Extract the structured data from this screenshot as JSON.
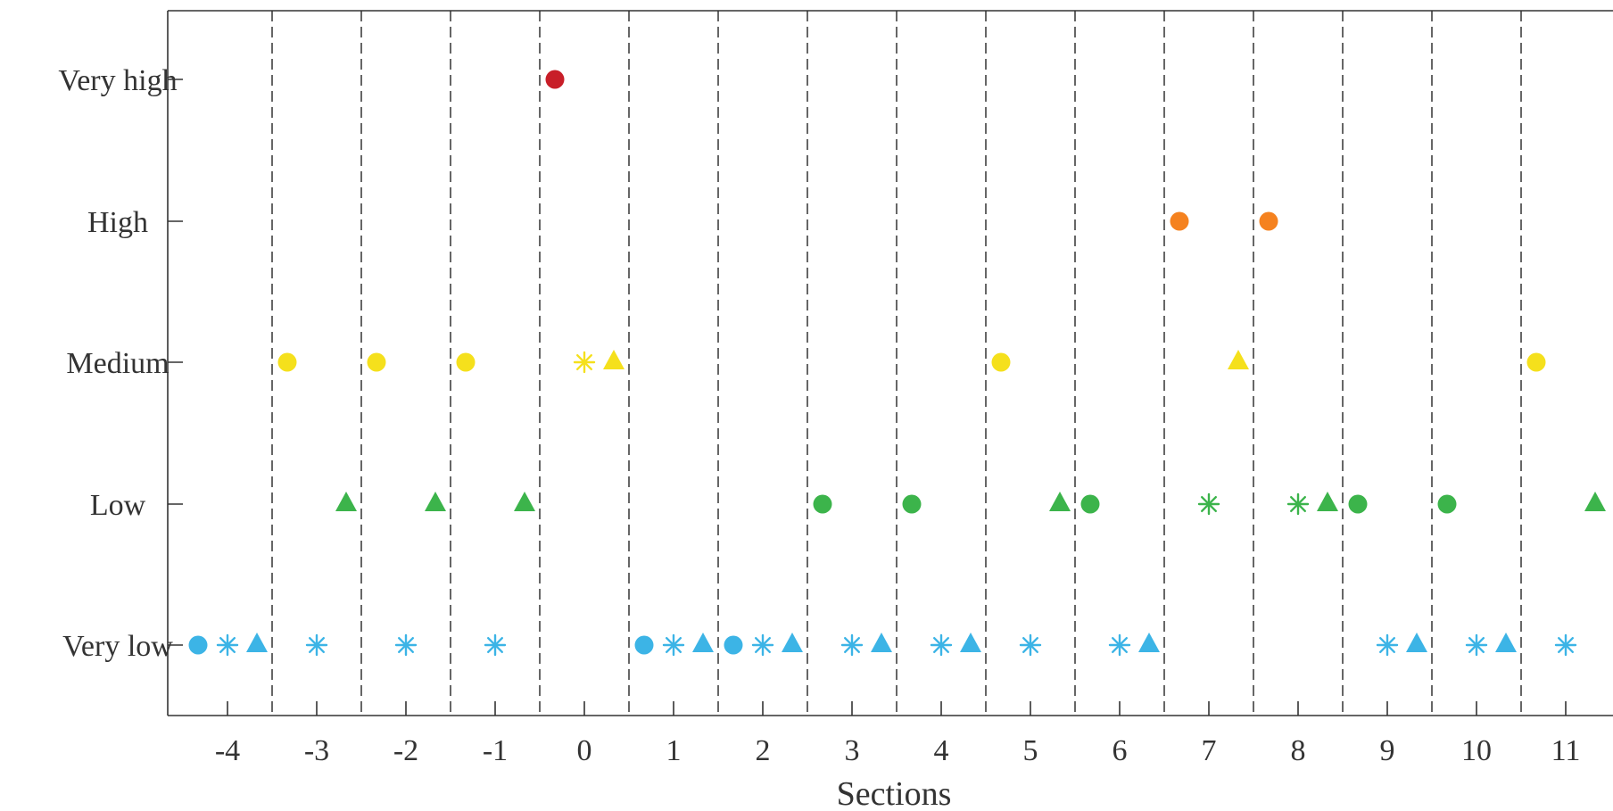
{
  "chart_data": {
    "type": "scatter",
    "xlabel": "Sections",
    "ylabel": "",
    "xlim": [
      -4.65,
      11.5
    ],
    "x_ticks": [
      -4,
      -3,
      -2,
      -1,
      0,
      1,
      2,
      3,
      4,
      5,
      6,
      7,
      8,
      9,
      10,
      11
    ],
    "x_tick_labels": [
      "-4",
      "-3",
      "-2",
      "-1",
      "0",
      "1",
      "2",
      "3",
      "4",
      "5",
      "6",
      "7",
      "8",
      "9",
      "10",
      "11"
    ],
    "y_categories": [
      "Very low",
      "Low",
      "Medium",
      "High",
      "Very high"
    ],
    "section_boundaries": [
      -3.5,
      -2.5,
      -1.5,
      -0.5,
      0.5,
      1.5,
      2.5,
      3.5,
      4.5,
      5.5,
      6.5,
      7.5,
      8.5,
      9.5,
      10.5
    ],
    "grid": "vertical dashed lines at section boundaries",
    "level_colors": {
      "Very low": "#3cb4e6",
      "Low": "#3cb44b",
      "Medium": "#f5e01c",
      "High": "#f5821f",
      "Very high": "#c81e28"
    },
    "marker_types": [
      "circle",
      "asterisk",
      "triangle"
    ],
    "points": [
      {
        "x": -4.33,
        "level": "Very low",
        "marker": "circle"
      },
      {
        "x": -4.0,
        "level": "Very low",
        "marker": "asterisk"
      },
      {
        "x": -3.67,
        "level": "Very low",
        "marker": "triangle"
      },
      {
        "x": -3.0,
        "level": "Very low",
        "marker": "asterisk"
      },
      {
        "x": -2.0,
        "level": "Very low",
        "marker": "asterisk"
      },
      {
        "x": -1.0,
        "level": "Very low",
        "marker": "asterisk"
      },
      {
        "x": 0.67,
        "level": "Very low",
        "marker": "circle"
      },
      {
        "x": 1.0,
        "level": "Very low",
        "marker": "asterisk"
      },
      {
        "x": 1.33,
        "level": "Very low",
        "marker": "triangle"
      },
      {
        "x": 1.67,
        "level": "Very low",
        "marker": "circle"
      },
      {
        "x": 2.0,
        "level": "Very low",
        "marker": "asterisk"
      },
      {
        "x": 2.33,
        "level": "Very low",
        "marker": "triangle"
      },
      {
        "x": 3.0,
        "level": "Very low",
        "marker": "asterisk"
      },
      {
        "x": 3.33,
        "level": "Very low",
        "marker": "triangle"
      },
      {
        "x": 4.0,
        "level": "Very low",
        "marker": "asterisk"
      },
      {
        "x": 4.33,
        "level": "Very low",
        "marker": "triangle"
      },
      {
        "x": 5.0,
        "level": "Very low",
        "marker": "asterisk"
      },
      {
        "x": 6.0,
        "level": "Very low",
        "marker": "asterisk"
      },
      {
        "x": 6.33,
        "level": "Very low",
        "marker": "triangle"
      },
      {
        "x": 9.0,
        "level": "Very low",
        "marker": "asterisk"
      },
      {
        "x": 9.33,
        "level": "Very low",
        "marker": "triangle"
      },
      {
        "x": 10.0,
        "level": "Very low",
        "marker": "asterisk"
      },
      {
        "x": 10.33,
        "level": "Very low",
        "marker": "triangle"
      },
      {
        "x": 11.0,
        "level": "Very low",
        "marker": "asterisk"
      },
      {
        "x": -2.67,
        "level": "Low",
        "marker": "triangle"
      },
      {
        "x": -1.67,
        "level": "Low",
        "marker": "triangle"
      },
      {
        "x": -0.67,
        "level": "Low",
        "marker": "triangle"
      },
      {
        "x": 2.67,
        "level": "Low",
        "marker": "circle"
      },
      {
        "x": 3.67,
        "level": "Low",
        "marker": "circle"
      },
      {
        "x": 5.33,
        "level": "Low",
        "marker": "triangle"
      },
      {
        "x": 5.67,
        "level": "Low",
        "marker": "circle"
      },
      {
        "x": 7.0,
        "level": "Low",
        "marker": "asterisk"
      },
      {
        "x": 8.0,
        "level": "Low",
        "marker": "asterisk"
      },
      {
        "x": 8.33,
        "level": "Low",
        "marker": "triangle"
      },
      {
        "x": 8.67,
        "level": "Low",
        "marker": "circle"
      },
      {
        "x": 9.67,
        "level": "Low",
        "marker": "circle"
      },
      {
        "x": 11.33,
        "level": "Low",
        "marker": "triangle"
      },
      {
        "x": -3.33,
        "level": "Medium",
        "marker": "circle"
      },
      {
        "x": -2.33,
        "level": "Medium",
        "marker": "circle"
      },
      {
        "x": -1.33,
        "level": "Medium",
        "marker": "circle"
      },
      {
        "x": 0.0,
        "level": "Medium",
        "marker": "asterisk"
      },
      {
        "x": 0.33,
        "level": "Medium",
        "marker": "triangle"
      },
      {
        "x": 4.67,
        "level": "Medium",
        "marker": "circle"
      },
      {
        "x": 7.33,
        "level": "Medium",
        "marker": "triangle"
      },
      {
        "x": 10.67,
        "level": "Medium",
        "marker": "circle"
      },
      {
        "x": 6.67,
        "level": "High",
        "marker": "circle"
      },
      {
        "x": 7.67,
        "level": "High",
        "marker": "circle"
      },
      {
        "x": -0.33,
        "level": "Very high",
        "marker": "circle"
      }
    ]
  }
}
